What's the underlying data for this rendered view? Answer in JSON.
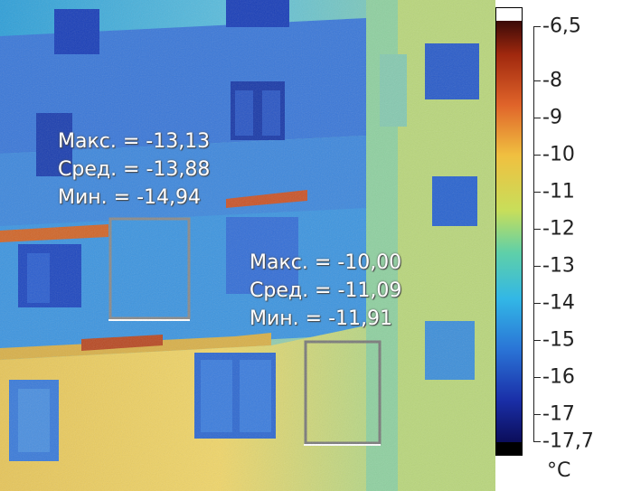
{
  "image": {
    "colors": {
      "cold": "#1f4fd0",
      "mid": "#49b7e0",
      "warm": "#e8d25c",
      "hot": "#c24a1f"
    }
  },
  "area_left": {
    "max": "Макс. = -13,13",
    "avg": "Сред. = -13,88",
    "min": "Мин. = -14,94"
  },
  "area_right": {
    "max": "Макс. = -10,00",
    "avg": "Сред. = -11,09",
    "min": "Мин. = -11,91"
  },
  "scale": {
    "labels": [
      "-6,5",
      "-8",
      "-9",
      "-10",
      "-11",
      "-12",
      "-13",
      "-14",
      "-15",
      "-16",
      "-17",
      "-17,7"
    ],
    "unit": "°C"
  }
}
